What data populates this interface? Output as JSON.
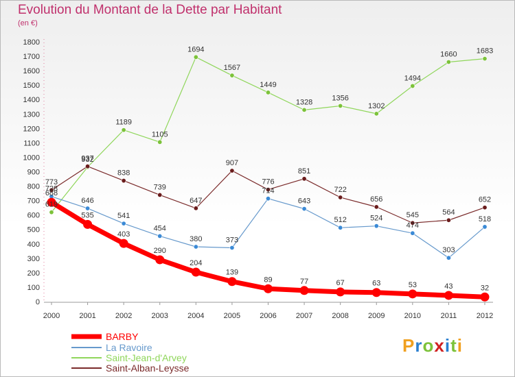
{
  "title": "Evolution du Montant de la Dette par Habitant",
  "unit": "(en €)",
  "logo": {
    "letters": [
      "P",
      "r",
      "o",
      "x",
      "i",
      "t",
      "i"
    ],
    "colors": [
      "#f0a020",
      "#2a7fd0",
      "#7cc23a",
      "#d02020",
      "#2a7fd0",
      "#7cc23a",
      "#f0a020"
    ]
  },
  "chart_data": {
    "type": "line",
    "x": [
      "2000",
      "2001",
      "2002",
      "2003",
      "2004",
      "2005",
      "2006",
      "2007",
      "2008",
      "2009",
      "2010",
      "2011",
      "2012"
    ],
    "yticks": [
      0,
      100,
      200,
      300,
      400,
      500,
      600,
      700,
      800,
      900,
      1000,
      1100,
      1200,
      1300,
      1400,
      1500,
      1600,
      1700,
      1800
    ],
    "ylim": [
      0,
      1800
    ],
    "grid": false,
    "legend_position": "bottom-left",
    "series": [
      {
        "name": "Saint-Jean-d'Arvey",
        "color": "#8fd65a",
        "marker": "#7cc23a",
        "width": 1.2,
        "values": [
          619,
          932,
          1189,
          1105,
          1694,
          1567,
          1449,
          1328,
          1356,
          1302,
          1494,
          1660,
          1683
        ],
        "labels": [
          "619",
          "932",
          "1189",
          "1105",
          "1694",
          "1567",
          "1449",
          "1328",
          "1356",
          "1302",
          "1494",
          "1660",
          "1683"
        ]
      },
      {
        "name": "La Ravoire",
        "color": "#6699cc",
        "marker": "#3b8ad6",
        "width": 1.2,
        "values": [
          728,
          646,
          541,
          454,
          380,
          373,
          714,
          643,
          512,
          524,
          474,
          303,
          518
        ],
        "labels": [
          "728",
          "646",
          "541",
          "454",
          "380",
          "373",
          "714",
          "643",
          "512",
          "524",
          "474",
          "303",
          "518"
        ]
      },
      {
        "name": "Saint-Alban-Leysse",
        "color": "#7a2a2a",
        "marker": "#6a1c1c",
        "width": 1.2,
        "values": [
          773,
          937,
          838,
          739,
          647,
          907,
          776,
          851,
          722,
          656,
          545,
          564,
          652
        ],
        "labels": [
          "773",
          "937",
          "838",
          "739",
          "647",
          "907",
          "776",
          "851",
          "722",
          "656",
          "545",
          "564",
          "652"
        ]
      },
      {
        "name": "BARBY",
        "color": "#ff0000",
        "marker": "#ff0000",
        "width": 7,
        "values": [
          688,
          535,
          403,
          290,
          204,
          139,
          89,
          77,
          67,
          63,
          53,
          43,
          32
        ],
        "labels": [
          "688",
          "535",
          "403",
          "290",
          "204",
          "139",
          "89",
          "77",
          "67",
          "63",
          "53",
          "43",
          "32"
        ]
      }
    ],
    "legend": [
      "BARBY",
      "La Ravoire",
      "Saint-Jean-d'Arvey",
      "Saint-Alban-Leysse"
    ]
  }
}
